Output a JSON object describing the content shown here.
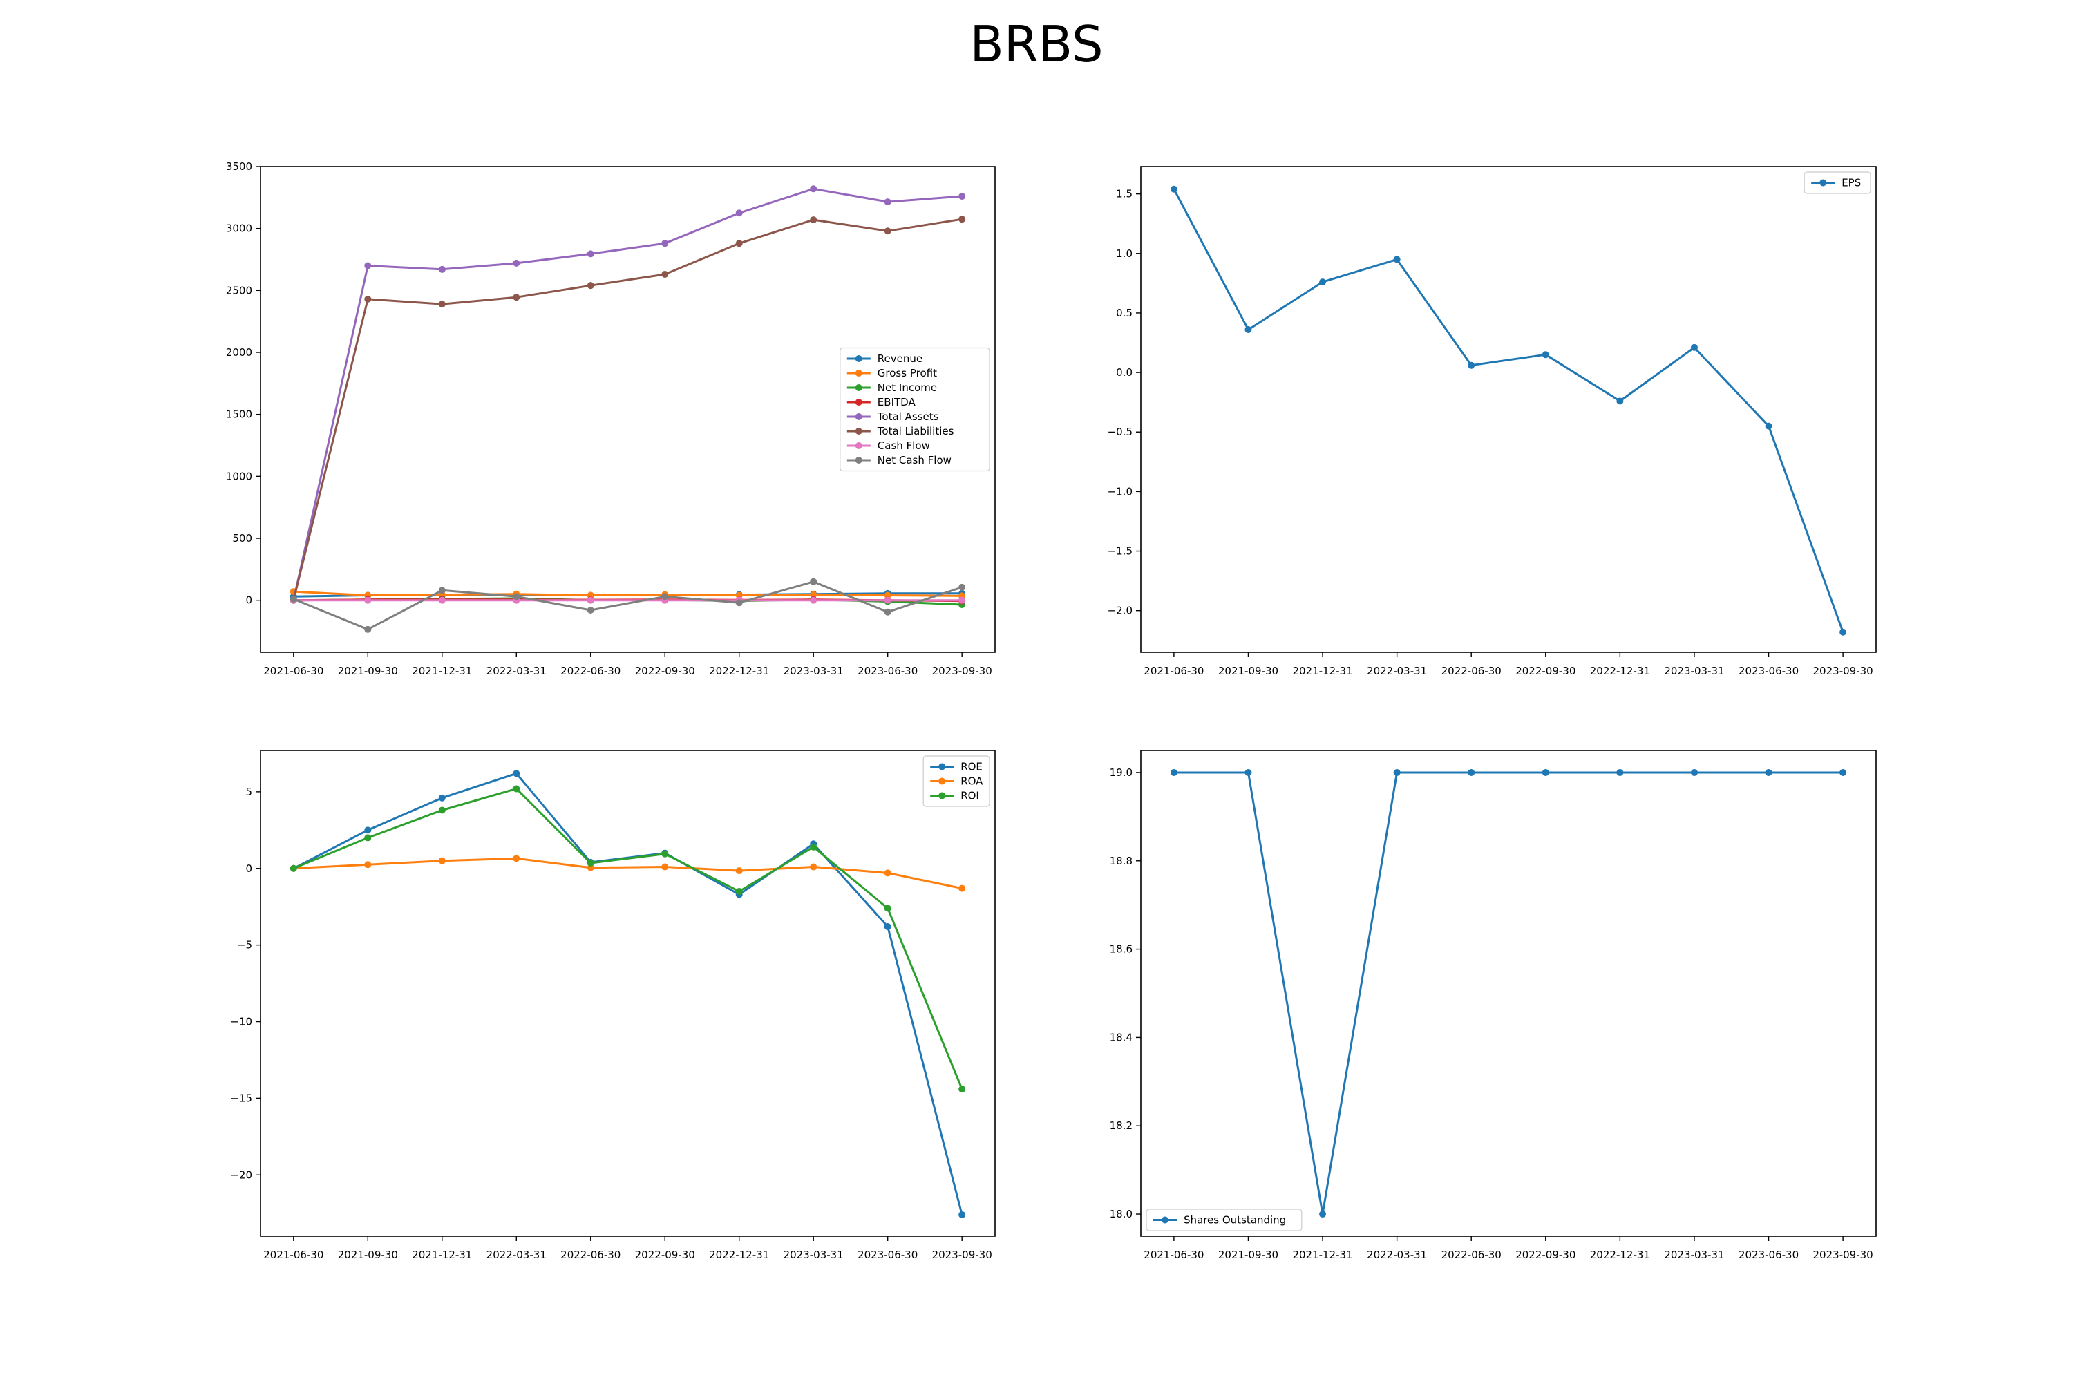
{
  "figure": {
    "title": "BRBS"
  },
  "chart_data": [
    {
      "type": "line",
      "x": [
        "2021-06-30",
        "2021-09-30",
        "2021-12-31",
        "2022-03-31",
        "2022-06-30",
        "2022-09-30",
        "2022-12-31",
        "2023-03-31",
        "2023-06-30",
        "2023-09-30"
      ],
      "ylim": [
        -420,
        3500
      ],
      "yticks": [
        0,
        500,
        1000,
        1500,
        2000,
        2500,
        3000,
        3500
      ],
      "ytick_labels": [
        "0",
        "500",
        "1000",
        "1500",
        "2000",
        "2500",
        "3000",
        "3500"
      ],
      "legend": "center-right",
      "series": [
        {
          "name": "Revenue",
          "color": "#1f77b4",
          "values": [
            30,
            40,
            40,
            40,
            40,
            40,
            45,
            50,
            55,
            55
          ]
        },
        {
          "name": "Gross Profit",
          "color": "#ff7f0e",
          "values": [
            70,
            40,
            45,
            50,
            40,
            45,
            40,
            45,
            40,
            35
          ]
        },
        {
          "name": "Net Income",
          "color": "#2ca02c",
          "values": [
            0,
            5,
            10,
            15,
            1,
            3,
            -5,
            5,
            -10,
            -35
          ]
        },
        {
          "name": "EBITDA",
          "color": "#d62728",
          "values": [
            0,
            5,
            5,
            5,
            3,
            5,
            2,
            5,
            0,
            -5
          ]
        },
        {
          "name": "Total Assets",
          "color": "#9467bd",
          "values": [
            0,
            2700,
            2670,
            2720,
            2795,
            2880,
            3125,
            3320,
            3215,
            3260
          ]
        },
        {
          "name": "Total Liabilities",
          "color": "#8c564b",
          "values": [
            0,
            2430,
            2390,
            2445,
            2540,
            2630,
            2880,
            3070,
            2980,
            3075
          ]
        },
        {
          "name": "Cash Flow",
          "color": "#e377c2",
          "values": [
            0,
            0,
            0,
            0,
            0,
            0,
            0,
            0,
            0,
            0
          ]
        },
        {
          "name": "Net Cash Flow",
          "color": "#7f7f7f",
          "values": [
            10,
            -235,
            80,
            30,
            -80,
            30,
            -20,
            150,
            -95,
            105
          ]
        }
      ]
    },
    {
      "type": "line",
      "x": [
        "2021-06-30",
        "2021-09-30",
        "2021-12-31",
        "2022-03-31",
        "2022-06-30",
        "2022-09-30",
        "2022-12-31",
        "2023-03-31",
        "2023-06-30",
        "2023-09-30"
      ],
      "ylim": [
        -2.35,
        1.73
      ],
      "yticks": [
        -2.0,
        -1.5,
        -1.0,
        -0.5,
        0.0,
        0.5,
        1.0,
        1.5
      ],
      "ytick_labels": [
        "−2.0",
        "−1.5",
        "−1.0",
        "−0.5",
        "0.0",
        "0.5",
        "1.0",
        "1.5"
      ],
      "legend": "top-right",
      "series": [
        {
          "name": "EPS",
          "color": "#1f77b4",
          "values": [
            1.54,
            0.36,
            0.76,
            0.95,
            0.06,
            0.15,
            -0.24,
            0.21,
            -0.45,
            -2.18
          ]
        }
      ]
    },
    {
      "type": "line",
      "x": [
        "2021-06-30",
        "2021-09-30",
        "2021-12-31",
        "2022-03-31",
        "2022-06-30",
        "2022-09-30",
        "2022-12-31",
        "2023-03-31",
        "2023-06-30",
        "2023-09-30"
      ],
      "ylim": [
        -24,
        7.7
      ],
      "yticks": [
        -20,
        -15,
        -10,
        -5,
        0,
        5
      ],
      "ytick_labels": [
        "−20",
        "−15",
        "−10",
        "−5",
        "0",
        "5"
      ],
      "legend": "top-right",
      "series": [
        {
          "name": "ROE",
          "color": "#1f77b4",
          "values": [
            0,
            2.5,
            4.6,
            6.2,
            0.4,
            1.0,
            -1.7,
            1.6,
            -3.8,
            -22.6
          ]
        },
        {
          "name": "ROA",
          "color": "#ff7f0e",
          "values": [
            0,
            0.25,
            0.5,
            0.65,
            0.05,
            0.1,
            -0.15,
            0.1,
            -0.3,
            -1.3
          ]
        },
        {
          "name": "ROI",
          "color": "#2ca02c",
          "values": [
            0,
            2.0,
            3.8,
            5.2,
            0.35,
            0.95,
            -1.5,
            1.4,
            -2.6,
            -14.4
          ]
        }
      ]
    },
    {
      "type": "line",
      "x": [
        "2021-06-30",
        "2021-09-30",
        "2021-12-31",
        "2022-03-31",
        "2022-06-30",
        "2022-09-30",
        "2022-12-31",
        "2023-03-31",
        "2023-06-30",
        "2023-09-30"
      ],
      "ylim": [
        17.95,
        19.05
      ],
      "yticks": [
        18.0,
        18.2,
        18.4,
        18.6,
        18.8,
        19.0
      ],
      "ytick_labels": [
        "18.0",
        "18.2",
        "18.4",
        "18.6",
        "18.8",
        "19.0"
      ],
      "legend": "bottom-left",
      "series": [
        {
          "name": "Shares Outstanding",
          "color": "#1f77b4",
          "values": [
            19,
            19,
            18,
            19,
            19,
            19,
            19,
            19,
            19,
            19
          ]
        }
      ]
    }
  ]
}
